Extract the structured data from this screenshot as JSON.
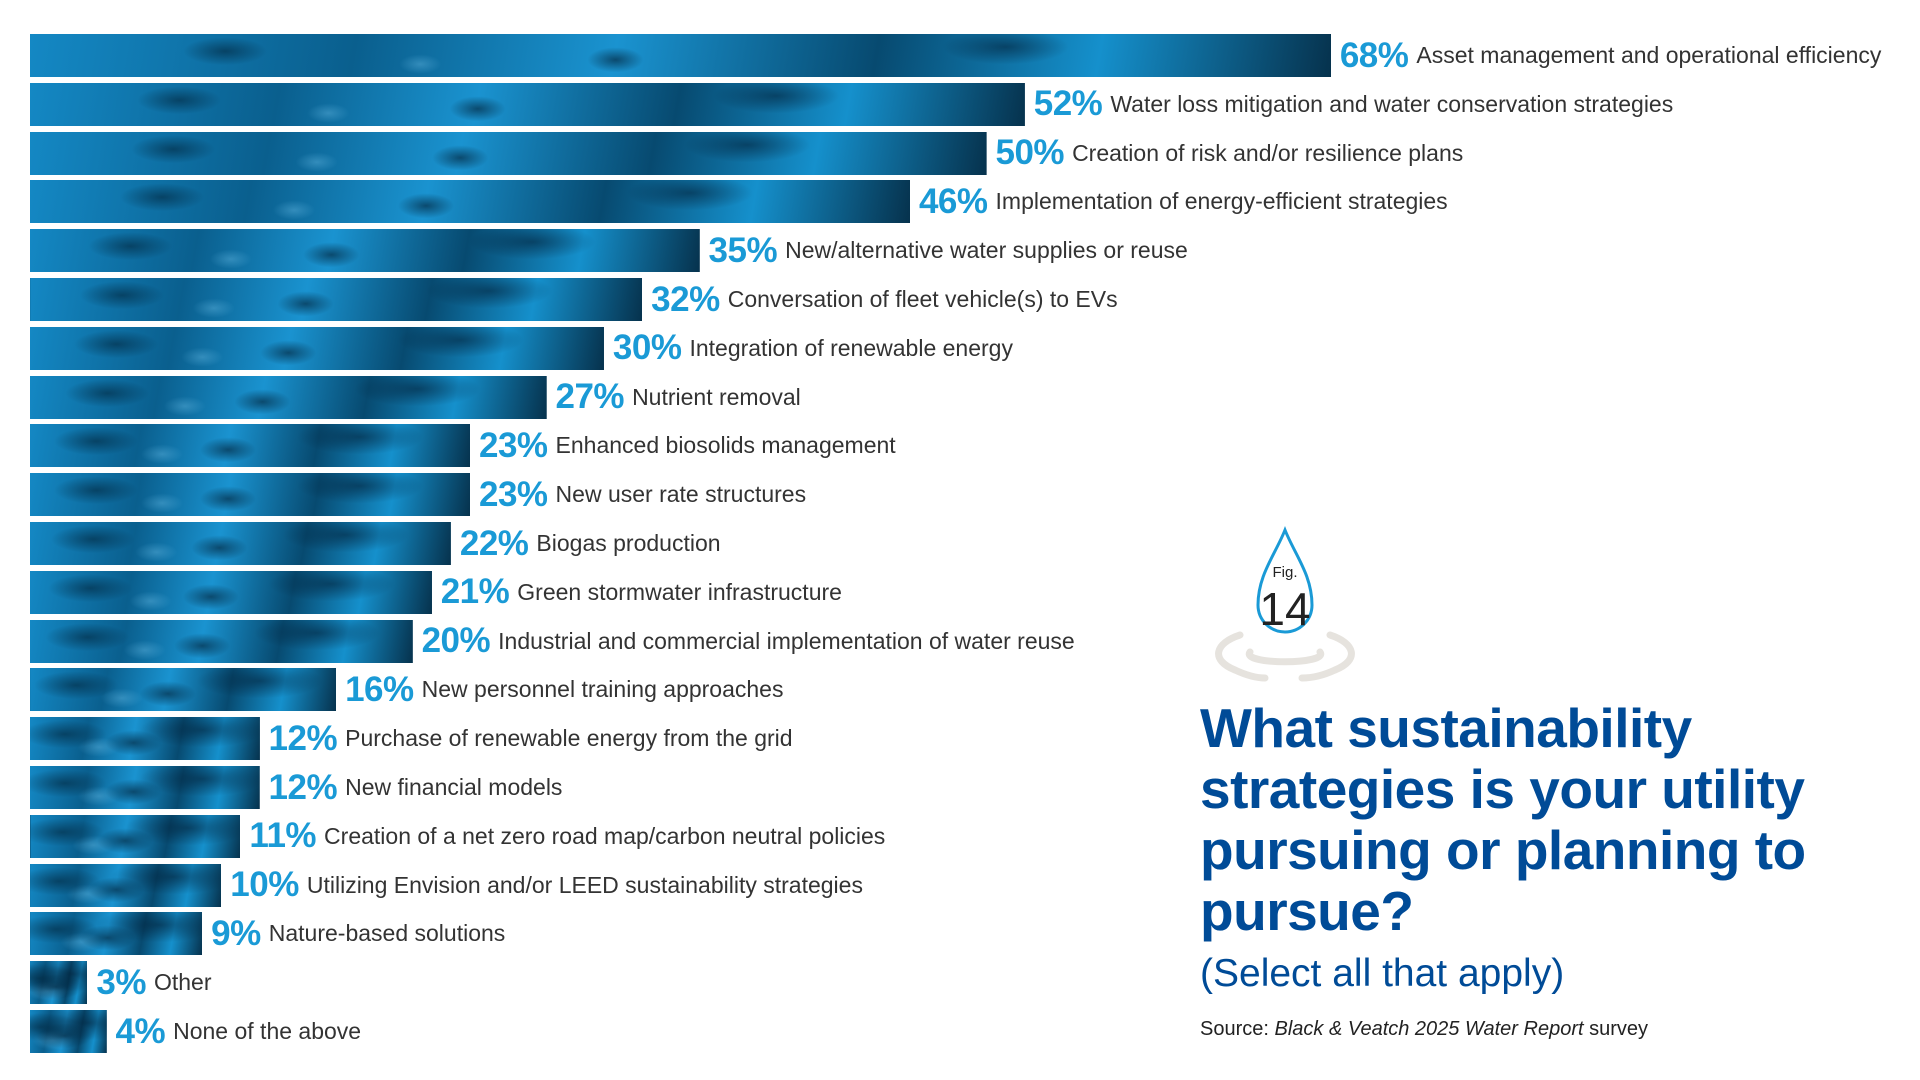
{
  "chart_data": {
    "type": "bar",
    "orientation": "horizontal",
    "title": "What sustainability strategies is your utility pursuing or planning to pursue?",
    "subtitle": "(Select all that apply)",
    "figure_label": "Fig.",
    "figure_number": "14",
    "source_prefix": "Source: ",
    "source_italic": "Black & Veatch 2025 Water Report",
    "source_suffix": " survey",
    "unit": "%",
    "categories": [
      "Asset management and operational efficiency",
      "Water loss mitigation and water conservation strategies",
      "Creation of risk and/or resilience plans",
      "Implementation of energy-efficient strategies",
      "New/alternative water supplies or reuse",
      "Conversation of fleet vehicle(s) to EVs",
      "Integration of renewable energy",
      "Nutrient removal",
      "Enhanced biosolids management",
      "New user rate structures",
      "Biogas production",
      "Green stormwater infrastructure",
      "Industrial and commercial implementation of water reuse",
      "New personnel training approaches",
      "Purchase of renewable energy from the grid",
      "New financial models",
      "Creation of a net zero road map/carbon neutral policies",
      "Utilizing Envision and/or LEED sustainability strategies",
      "Nature-based solutions",
      "Other",
      "None of the above"
    ],
    "values": [
      68,
      52,
      50,
      46,
      35,
      32,
      30,
      27,
      23,
      23,
      22,
      21,
      20,
      16,
      12,
      12,
      11,
      10,
      9,
      3,
      4
    ],
    "value_labels": [
      "68%",
      "52%",
      "50%",
      "46%",
      "35%",
      "32%",
      "30%",
      "27%",
      "23%",
      "23%",
      "22%",
      "21%",
      "20%",
      "16%",
      "12%",
      "12%",
      "11%",
      "10%",
      "9%",
      "3%",
      "4%"
    ],
    "axis_visible": false,
    "grid": false,
    "colors": {
      "percent": "#1a9ad6",
      "title": "#004b97",
      "bar": "#1488c4"
    }
  }
}
